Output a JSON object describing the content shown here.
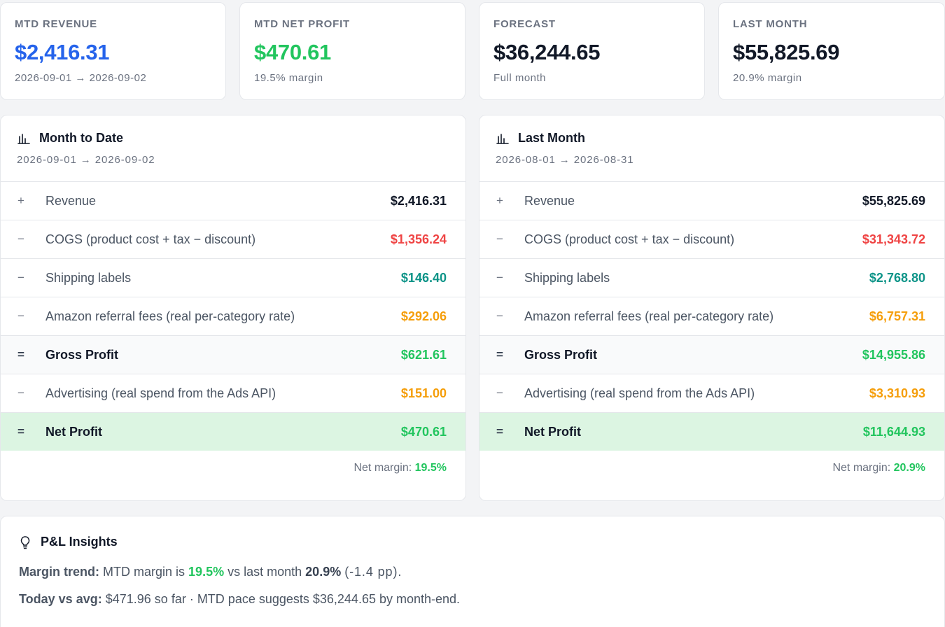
{
  "colors": {
    "blue": "#2563eb",
    "green": "#22c55e",
    "red": "#ef4444",
    "teal": "#0d9488",
    "amber": "#f59e0b",
    "dark": "#111827"
  },
  "kpis": [
    {
      "label": "MTD REVENUE",
      "value": "$2,416.31",
      "sub": "2026-09-01 → 2026-09-02",
      "color": "#2563eb"
    },
    {
      "label": "MTD NET PROFIT",
      "value": "$470.61",
      "sub": "19.5% margin",
      "color": "#22c55e"
    },
    {
      "label": "FORECAST",
      "value": "$36,244.65",
      "sub": "Full month",
      "color": "#111827"
    },
    {
      "label": "LAST MONTH",
      "value": "$55,825.69",
      "sub": "20.9% margin",
      "color": "#111827"
    }
  ],
  "panels": [
    {
      "title": "Month to Date",
      "icon": "bar-chart-icon",
      "range": "2026-09-01 → 2026-09-02",
      "rows": [
        {
          "op": "+",
          "label": "Revenue",
          "amount": "$2,416.31",
          "color": "#111827"
        },
        {
          "op": "−",
          "label": "COGS (product cost + tax − discount)",
          "amount": "$1,356.24",
          "color": "#ef4444"
        },
        {
          "op": "−",
          "label": "Shipping labels",
          "amount": "$146.40",
          "color": "#0d9488"
        },
        {
          "op": "−",
          "label": "Amazon referral fees (real per-category rate)",
          "amount": "$292.06",
          "color": "#f59e0b"
        },
        {
          "op": "=",
          "label": "Gross Profit",
          "amount": "$621.61",
          "color": "#22c55e"
        },
        {
          "op": "−",
          "label": "Advertising (real spend from the Ads API)",
          "amount": "$151.00",
          "color": "#f59e0b"
        },
        {
          "op": "=",
          "label": "Net Profit",
          "amount": "$470.61",
          "color": "#22c55e"
        }
      ],
      "margin_label": "Net margin:",
      "margin_value": "19.5%"
    },
    {
      "title": "Last Month",
      "icon": "bar-chart-icon",
      "range": "2026-08-01 → 2026-08-31",
      "rows": [
        {
          "op": "+",
          "label": "Revenue",
          "amount": "$55,825.69",
          "color": "#111827"
        },
        {
          "op": "−",
          "label": "COGS (product cost + tax − discount)",
          "amount": "$31,343.72",
          "color": "#ef4444"
        },
        {
          "op": "−",
          "label": "Shipping labels",
          "amount": "$2,768.80",
          "color": "#0d9488"
        },
        {
          "op": "−",
          "label": "Amazon referral fees (real per-category rate)",
          "amount": "$6,757.31",
          "color": "#f59e0b"
        },
        {
          "op": "=",
          "label": "Gross Profit",
          "amount": "$14,955.86",
          "color": "#22c55e"
        },
        {
          "op": "−",
          "label": "Advertising (real spend from the Ads API)",
          "amount": "$3,310.93",
          "color": "#f59e0b"
        },
        {
          "op": "=",
          "label": "Net Profit",
          "amount": "$11,644.93",
          "color": "#22c55e"
        }
      ],
      "margin_label": "Net margin:",
      "margin_value": "20.9%"
    }
  ],
  "insights": {
    "title": "P&L Insights",
    "icon": "lightbulb-icon",
    "margin_trend": {
      "key": "Margin trend:",
      "t1": "MTD margin is",
      "mtd": "19.5%",
      "t2": "vs last month",
      "last": "20.9%",
      "delta": "(-1.4 pp)."
    },
    "today": {
      "key": "Today vs avg:",
      "text": "$471.96 so far · MTD pace suggests $36,244.65 by month-end."
    }
  }
}
